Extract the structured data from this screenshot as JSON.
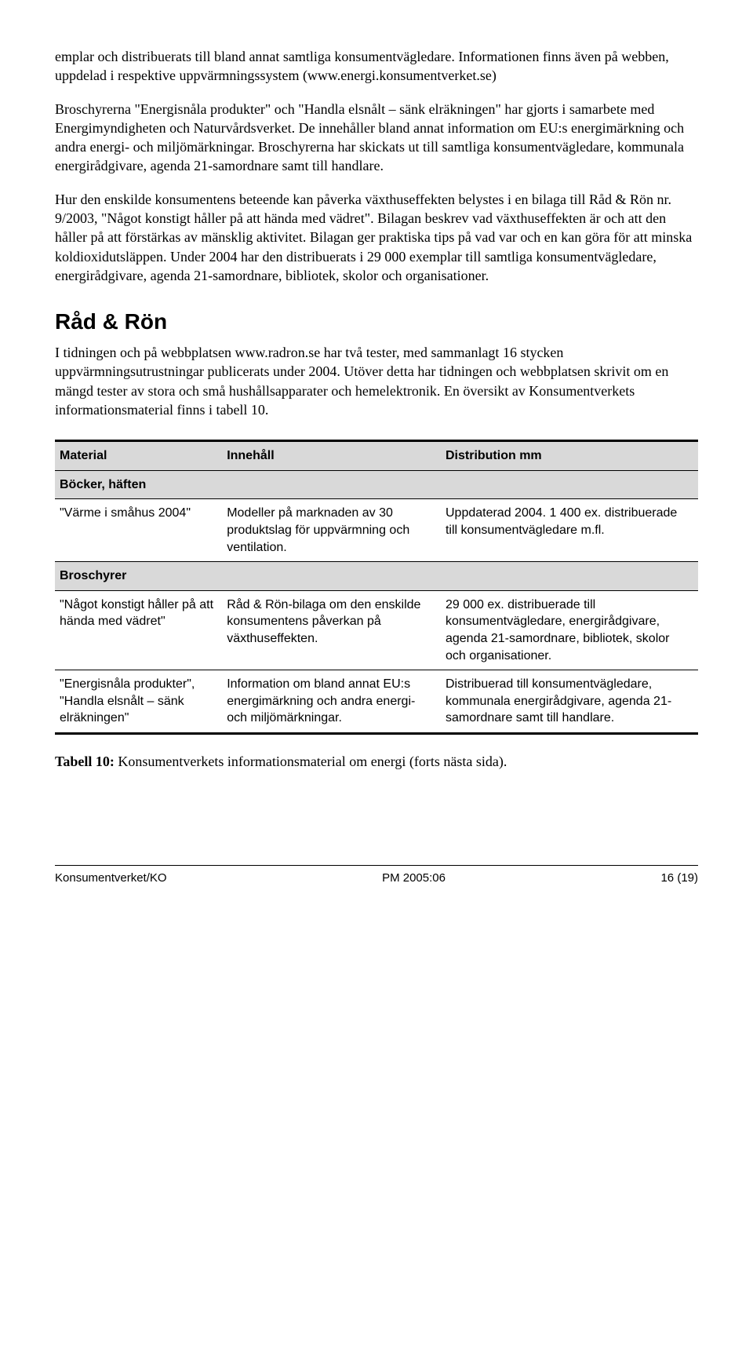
{
  "paragraphs": {
    "p1": "emplar och distribuerats till bland annat samtliga konsumentvägledare. Informationen finns även på webben, uppdelad i respektive uppvärmningssystem (www.energi.konsumentverket.se)",
    "p2": "Broschyrerna \"Energisnåla produkter\" och \"Handla elsnålt – sänk elräkningen\" har gjorts i samarbete med Energimyndigheten och Naturvårdsverket. De innehåller bland annat information om EU:s energimärkning och andra energi- och miljömärkningar. Broschyrerna har skickats ut till samtliga konsumentvägledare, kommunala energirådgivare, agenda 21-samordnare samt till handlare.",
    "p3": "Hur den enskilde konsumentens beteende kan påverka växthuseffekten belystes i en bilaga till Råd & Rön nr. 9/2003, \"Något konstigt håller på att hända med vädret\". Bilagan beskrev vad växthuseffekten är och att den håller på att förstärkas av mänsklig aktivitet. Bilagan ger praktiska tips på vad var och en kan göra för att minska koldioxidutsläppen. Under 2004 har den distribuerats i 29 000 exemplar till samtliga konsumentvägledare, energirådgivare, agenda 21-samordnare, bibliotek, skolor och organisationer.",
    "heading": "Råd & Rön",
    "p4": "I tidningen och på webbplatsen www.radron.se har två tester, med sammanlagt 16 stycken uppvärmningsutrustningar publicerats under 2004. Utöver detta har tidningen och webbplatsen skrivit om en mängd tester av stora och små hushållsapparater och hemelektronik. En översikt av Konsumentverkets informationsmaterial finns i tabell 10."
  },
  "table": {
    "headers": {
      "h1": "Material",
      "h2": "Innehåll",
      "h3": "Distribution mm"
    },
    "section1": "Böcker, häften",
    "row1": {
      "c1": "\"Värme i småhus 2004\"",
      "c2": "Modeller på marknaden av 30 produktslag för uppvärmning och ventilation.",
      "c3": "Uppdaterad 2004. 1 400 ex. distribuerade till konsumentvägledare m.fl."
    },
    "section2": "Broschyrer",
    "row2": {
      "c1": "\"Något konstigt håller på att hända med vädret\"",
      "c2": "Råd & Rön-bilaga om den enskilde konsumentens påverkan på växthuseffekten.",
      "c3": "29 000 ex. distribuerade till konsumentvägledare, energirådgivare, agenda 21-samordnare, bibliotek, skolor och organisationer."
    },
    "row3": {
      "c1": "\"Energisnåla produkter\", \"Handla elsnålt – sänk elräkningen\"",
      "c2": "Information om bland annat EU:s energimärkning och andra energi- och miljömärkningar.",
      "c3": "Distribuerad till konsumentvägledare, kommunala energirådgivare, agenda 21-samordnare samt till handlare."
    }
  },
  "caption": {
    "label": "Tabell 10:",
    "text": " Konsumentverkets informationsmaterial om energi (forts nästa sida)."
  },
  "footer": {
    "left": "Konsumentverket/KO",
    "center": "PM 2005:06",
    "right": "16 (19)"
  }
}
